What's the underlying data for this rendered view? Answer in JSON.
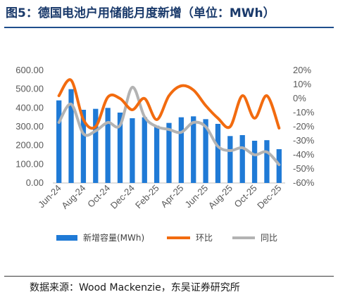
{
  "page": {
    "title": "图5：德国电池户用储能月度新增（单位：MWh）",
    "source": "数据来源：Wood Mackenzie，东吴证券研究所"
  },
  "colors": {
    "bar": "#1f7ad6",
    "mom": "#f26b0f",
    "yoy": "#b3b3b3"
  },
  "chart_data": {
    "type": "bar",
    "categories": [
      "Jun-24",
      "Jul-24",
      "Aug-24",
      "Sep-24",
      "Oct-24",
      "Nov-24",
      "Dec-24",
      "Jan-25",
      "Feb-25",
      "Mar-25",
      "Apr-25",
      "May-25",
      "Jun-25",
      "Jul-25",
      "Aug-25",
      "Sep-25",
      "Oct-25",
      "Nov-25",
      "Dec-25"
    ],
    "x_tick_labels": [
      "Jun-24",
      "Aug-24",
      "Oct-24",
      "Dec-24",
      "Feb-25",
      "Apr-25",
      "Jun-25",
      "Aug-25",
      "Oct-25",
      "Dec-25"
    ],
    "series": [
      {
        "name": "新增容量(MWh)",
        "type": "bar",
        "axis": "left",
        "values": [
          440,
          500,
          390,
          395,
          400,
          375,
          345,
          350,
          305,
          320,
          350,
          355,
          340,
          315,
          250,
          255,
          225,
          228,
          180
        ]
      },
      {
        "name": "环比",
        "type": "line",
        "axis": "right",
        "unit": "%",
        "values": [
          2,
          13,
          -15,
          -20,
          1,
          0,
          -8,
          0,
          -15,
          2,
          9,
          6,
          -5,
          -14,
          -20,
          2,
          -14,
          2,
          -21
        ]
      },
      {
        "name": "同比",
        "type": "line",
        "axis": "right",
        "unit": "%",
        "values": [
          -17,
          -4,
          -25,
          -23,
          -17,
          -19,
          8,
          -13,
          -20,
          -22,
          -24,
          -17,
          -20,
          -34,
          -37,
          -35,
          -40,
          -38,
          -47
        ]
      }
    ],
    "y_left": {
      "ticks": [
        "0.00",
        "100.00",
        "200.00",
        "300.00",
        "400.00",
        "500.00",
        "600.00"
      ],
      "min": 0,
      "max": 600
    },
    "y_right": {
      "ticks": [
        "20%",
        "10%",
        "0%",
        "-10%",
        "-20%",
        "-30%",
        "-40%",
        "-50%",
        "-60%"
      ],
      "min": -60,
      "max": 20
    },
    "legend_position": "bottom",
    "grid": false
  }
}
